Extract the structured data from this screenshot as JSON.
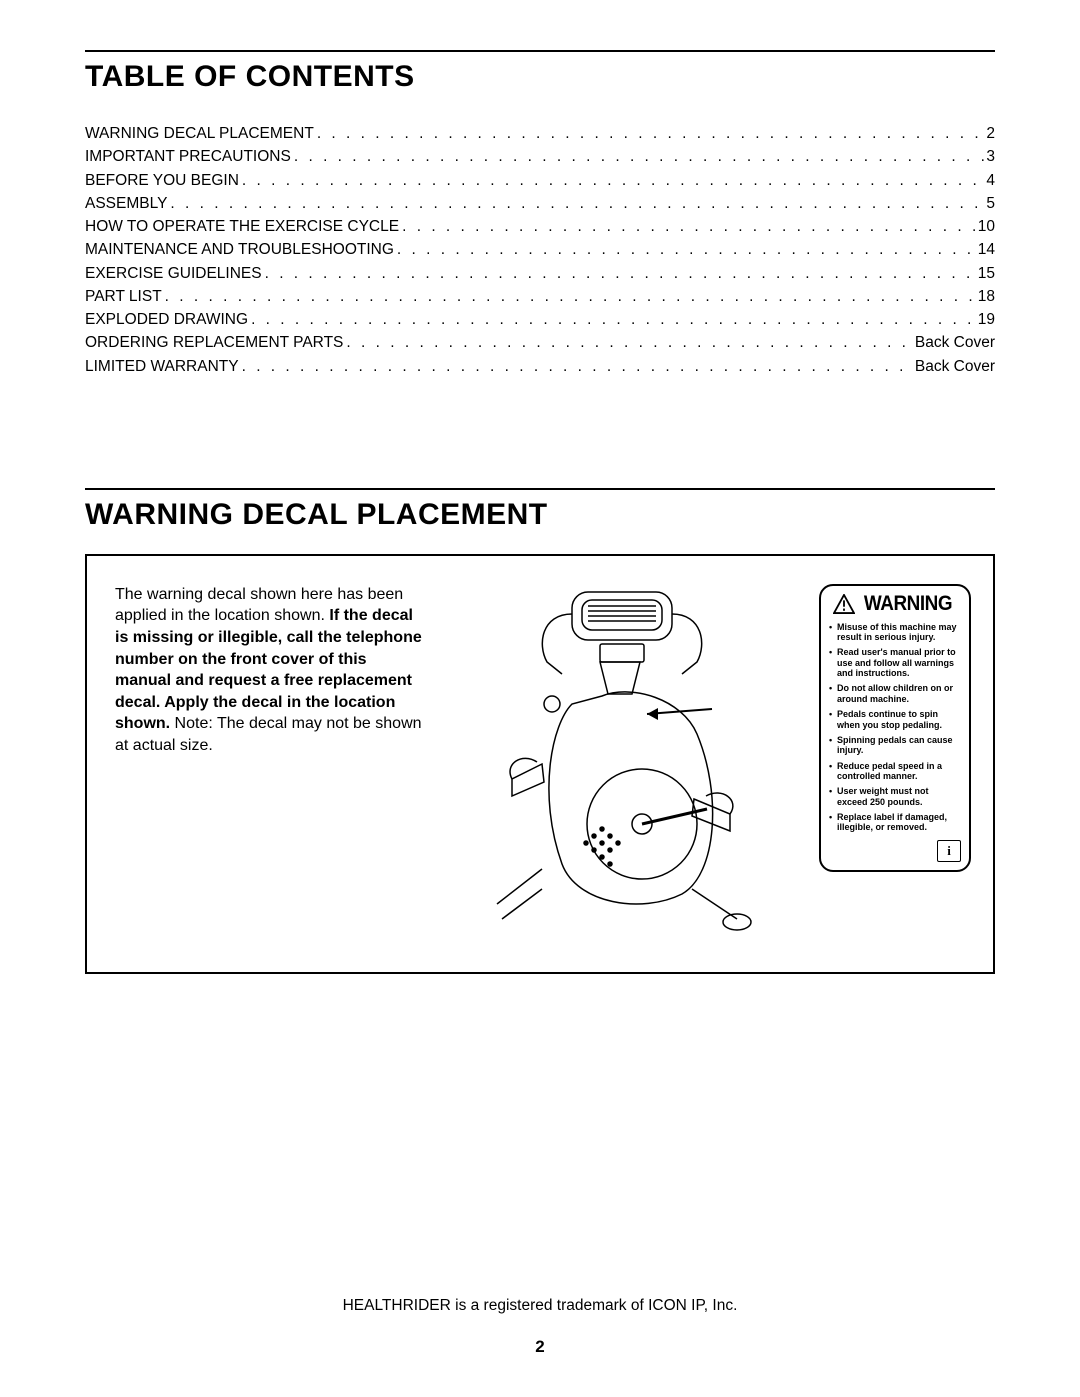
{
  "toc": {
    "heading": "TABLE OF CONTENTS",
    "items": [
      {
        "label": "WARNING DECAL PLACEMENT",
        "page": "2"
      },
      {
        "label": "IMPORTANT PRECAUTIONS",
        "page": "3"
      },
      {
        "label": "BEFORE YOU BEGIN",
        "page": "4"
      },
      {
        "label": "ASSEMBLY",
        "page": "5"
      },
      {
        "label": "HOW TO OPERATE THE EXERCISE CYCLE",
        "page": "10"
      },
      {
        "label": "MAINTENANCE AND TROUBLESHOOTING",
        "page": "14"
      },
      {
        "label": "EXERCISE GUIDELINES",
        "page": "15"
      },
      {
        "label": "PART LIST",
        "page": "18"
      },
      {
        "label": "EXPLODED DRAWING",
        "page": "19"
      },
      {
        "label": "ORDERING REPLACEMENT PARTS",
        "page": "Back Cover"
      },
      {
        "label": "LIMITED WARRANTY",
        "page": "Back Cover"
      }
    ]
  },
  "section2": {
    "heading": "WARNING DECAL PLACEMENT",
    "body_pre": "The warning decal shown here has been applied in the location shown. ",
    "body_bold": "If the decal is missing or illegible, call the telephone number on the front cover of this manual and request a free replacement decal. Apply the decal in the location shown.",
    "body_post": " Note: The decal may not be shown at actual size."
  },
  "warning_decal": {
    "header": "WARNING",
    "items": [
      "Misuse of this machine may result in serious injury.",
      "Read user's manual prior to use and follow all warnings and instructions.",
      "Do not allow children on or around machine.",
      "Pedals continue to spin when you stop pedaling.",
      "Spinning pedals can cause injury.",
      "Reduce pedal speed in a controlled manner.",
      "User weight must not exceed 250 pounds.",
      "Replace label if damaged, illegible, or removed."
    ],
    "info_glyph": "i"
  },
  "footer": {
    "trademark": "HEALTHRIDER is a registered trademark of ICON IP, Inc.",
    "page_number": "2"
  }
}
